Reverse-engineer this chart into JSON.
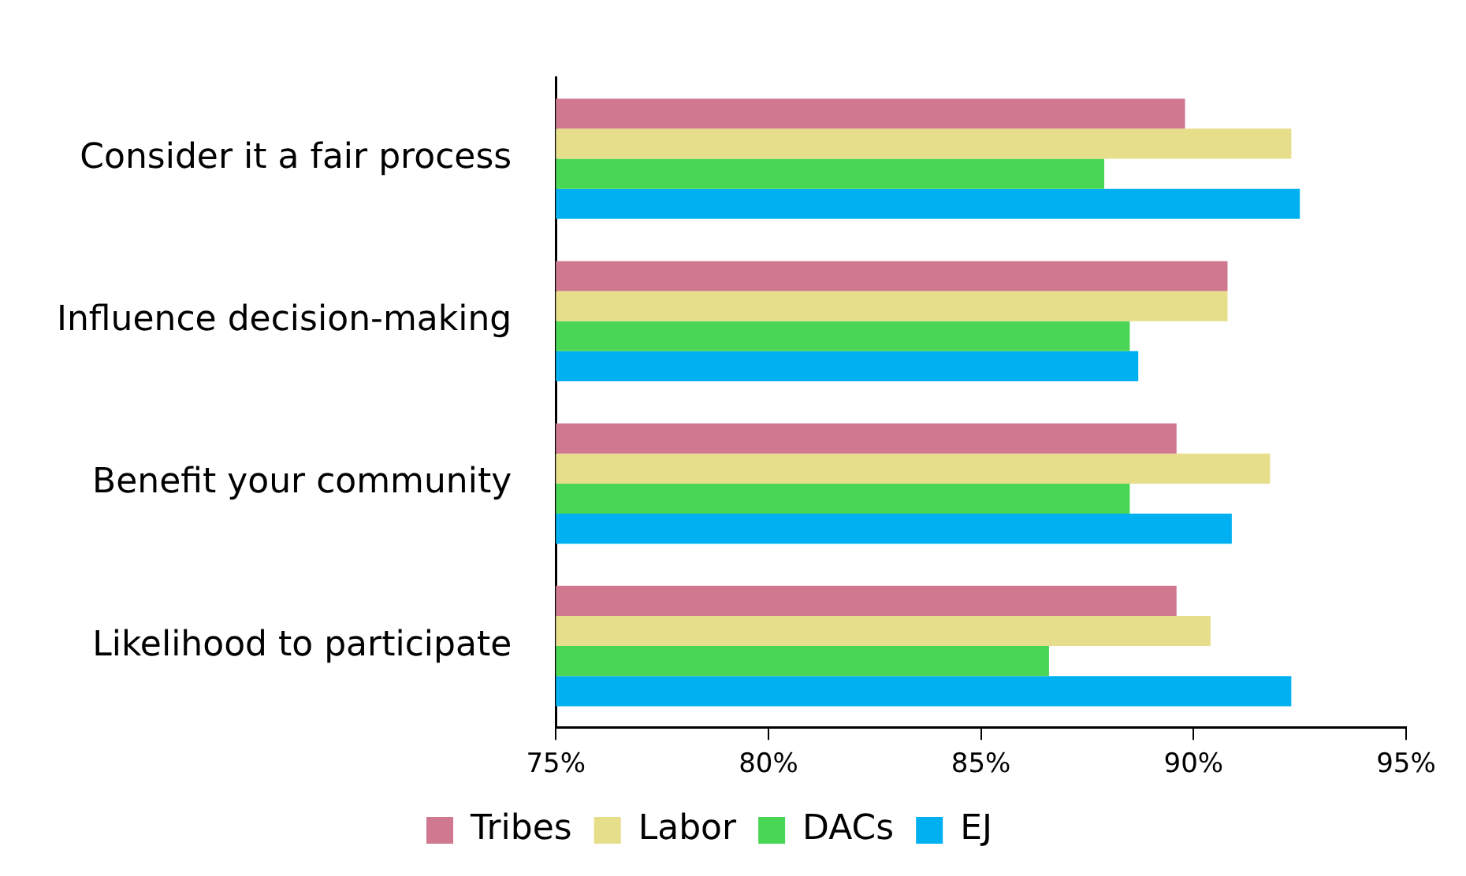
{
  "chart_data": {
    "type": "bar",
    "orientation": "horizontal",
    "categories": [
      "Consider it a fair process",
      "Influence decision-making",
      "Benefit your community",
      "Likelihood to participate"
    ],
    "series": [
      {
        "name": "Tribes",
        "color": "#d07890",
        "values": [
          89.8,
          90.8,
          89.6,
          89.6
        ]
      },
      {
        "name": "Labor",
        "color": "#e6de8a",
        "values": [
          92.3,
          90.8,
          91.8,
          90.4
        ]
      },
      {
        "name": "DACs",
        "color": "#4ad655",
        "values": [
          87.9,
          88.5,
          88.5,
          86.6
        ]
      },
      {
        "name": "EJ",
        "color": "#00b0f0",
        "values": [
          92.5,
          88.7,
          90.9,
          92.3
        ]
      }
    ],
    "xlim": [
      75,
      95
    ],
    "xticks": [
      {
        "value": 75,
        "label": "75%"
      },
      {
        "value": 80,
        "label": "80%"
      },
      {
        "value": 85,
        "label": "85%"
      },
      {
        "value": 90,
        "label": "90%"
      },
      {
        "value": 95,
        "label": "95%"
      }
    ],
    "grid": false,
    "legend": "bottom"
  }
}
